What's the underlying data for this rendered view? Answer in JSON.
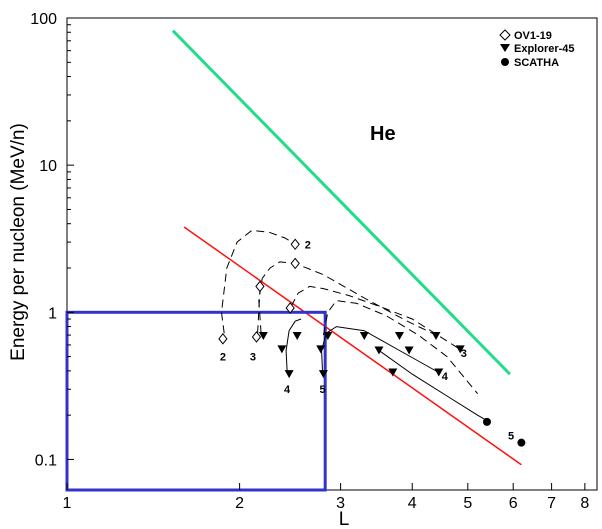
{
  "chart_data": {
    "type": "scatter",
    "xscale": "log",
    "yscale": "log",
    "xlim": [
      1,
      8.4
    ],
    "ylim": [
      0.062,
      100
    ],
    "xlabel": "L",
    "ylabel": "Energy per nucleon (MeV/n)",
    "x_ticks": [
      1,
      2,
      3,
      4,
      5,
      6,
      7,
      8
    ],
    "x_tick_labels": [
      "1",
      "2",
      "3",
      "4",
      "5",
      "6",
      "7",
      "8"
    ],
    "y_ticks": [
      0.1,
      1,
      10,
      100
    ],
    "y_tick_labels": [
      "0.1",
      "1",
      "10",
      "100"
    ],
    "grid": false,
    "legend_position": "top-right",
    "annotation": "He",
    "colors": {
      "green": "#22dd88",
      "red": "#ff1111",
      "blue": "#3333cc",
      "black": "#000000"
    },
    "series": [
      {
        "name": "OV1-19",
        "marker": "diamond-open",
        "points": [
          [
            1.87,
            0.66
          ],
          [
            2.14,
            0.68
          ],
          [
            2.17,
            1.5
          ],
          [
            2.45,
            1.07
          ],
          [
            2.5,
            2.15
          ],
          [
            2.5,
            2.9
          ]
        ]
      },
      {
        "name": "Explorer-45",
        "marker": "triangle-down",
        "points": [
          [
            2.2,
            0.69
          ],
          [
            2.37,
            0.56
          ],
          [
            2.44,
            0.38
          ],
          [
            2.52,
            0.69
          ],
          [
            2.77,
            0.56
          ],
          [
            2.8,
            0.38
          ],
          [
            2.85,
            0.69
          ],
          [
            3.3,
            0.69
          ],
          [
            3.5,
            0.55
          ],
          [
            3.7,
            0.39
          ],
          [
            3.8,
            0.69
          ],
          [
            3.95,
            0.55
          ],
          [
            4.45,
            0.39
          ],
          [
            4.4,
            0.69
          ],
          [
            4.85,
            0.56
          ]
        ]
      },
      {
        "name": "SCATHA",
        "marker": "circle",
        "points": [
          [
            5.4,
            0.18
          ],
          [
            6.2,
            0.13
          ]
        ]
      }
    ],
    "lines": [
      {
        "color": "green",
        "style": "solid",
        "x": [
          1.53,
          5.92
        ],
        "y": [
          82,
          0.38
        ]
      },
      {
        "color": "red",
        "style": "solid",
        "x": [
          1.6,
          6.2
        ],
        "y": [
          3.8,
          0.092
        ]
      },
      {
        "color": "blue",
        "style": "box",
        "x": [
          1,
          2.82
        ],
        "y": [
          0.062,
          1
        ]
      }
    ],
    "curves": [
      {
        "style": "dashed",
        "x": [
          1.88,
          1.86,
          1.9,
          1.98,
          2.1,
          2.25,
          2.4,
          2.5
        ],
        "y": [
          0.72,
          1.0,
          2.0,
          3.0,
          3.6,
          3.5,
          3.2,
          2.9
        ]
      },
      {
        "style": "dashed",
        "x": [
          2.18,
          2.16,
          2.19,
          2.26,
          2.35,
          2.5,
          2.8,
          3.3,
          3.9,
          4.4
        ],
        "y": [
          0.72,
          1.2,
          1.7,
          2.0,
          2.2,
          2.15,
          1.8,
          1.25,
          0.88,
          0.7
        ]
      },
      {
        "style": "dashed",
        "x": [
          2.15,
          2.17
        ],
        "y": [
          0.72,
          1.4
        ]
      },
      {
        "style": "dashed",
        "x": [
          2.46,
          2.53,
          2.65,
          2.8,
          3.1,
          3.5,
          4.0,
          4.85
        ],
        "y": [
          1.1,
          1.35,
          1.5,
          1.45,
          1.3,
          1.1,
          0.9,
          0.56
        ]
      },
      {
        "style": "dashed",
        "x": [
          2.8,
          2.85,
          2.95,
          3.2,
          3.6,
          4.1,
          4.6,
          5.2
        ],
        "y": [
          0.7,
          1.0,
          1.2,
          1.15,
          0.95,
          0.7,
          0.5,
          0.28
        ]
      },
      {
        "style": "solid",
        "x": [
          2.42,
          2.41,
          2.44,
          2.5,
          2.56
        ],
        "y": [
          0.4,
          0.55,
          0.75,
          0.87,
          0.9
        ]
      },
      {
        "style": "solid",
        "x": [
          2.79,
          2.78,
          2.83,
          2.95,
          3.3,
          3.8,
          4.45
        ],
        "y": [
          0.4,
          0.55,
          0.72,
          0.8,
          0.75,
          0.55,
          0.39
        ]
      },
      {
        "style": "solid",
        "x": [
          3.5,
          4.0,
          4.6,
          5.2,
          5.45
        ],
        "y": [
          0.55,
          0.38,
          0.27,
          0.2,
          0.18
        ]
      }
    ],
    "curve_labels": [
      {
        "text": "2",
        "x": 2.63,
        "y": 2.9
      },
      {
        "text": "2",
        "x": 1.87,
        "y": 0.5
      },
      {
        "text": "3",
        "x": 2.11,
        "y": 0.5
      },
      {
        "text": "4",
        "x": 2.42,
        "y": 0.3
      },
      {
        "text": "5",
        "x": 2.79,
        "y": 0.3
      },
      {
        "text": "3",
        "x": 4.92,
        "y": 0.53
      },
      {
        "text": "4",
        "x": 4.56,
        "y": 0.37
      },
      {
        "text": "5",
        "x": 5.95,
        "y": 0.145
      }
    ]
  }
}
